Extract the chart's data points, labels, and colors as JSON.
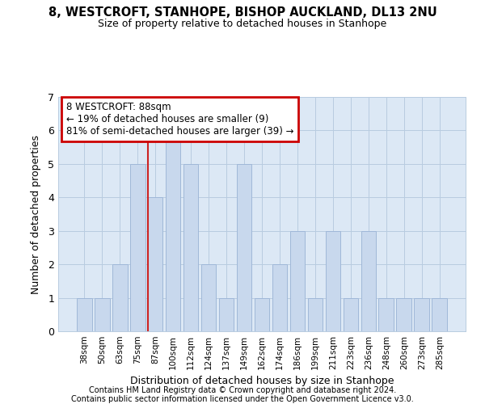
{
  "title1": "8, WESTCROFT, STANHOPE, BISHOP AUCKLAND, DL13 2NU",
  "title2": "Size of property relative to detached houses in Stanhope",
  "xlabel": "Distribution of detached houses by size in Stanhope",
  "ylabel": "Number of detached properties",
  "categories": [
    "38sqm",
    "50sqm",
    "63sqm",
    "75sqm",
    "87sqm",
    "100sqm",
    "112sqm",
    "124sqm",
    "137sqm",
    "149sqm",
    "162sqm",
    "174sqm",
    "186sqm",
    "199sqm",
    "211sqm",
    "223sqm",
    "236sqm",
    "248sqm",
    "260sqm",
    "273sqm",
    "285sqm"
  ],
  "values": [
    1,
    1,
    2,
    5,
    4,
    6,
    5,
    2,
    1,
    5,
    1,
    2,
    3,
    1,
    3,
    1,
    3,
    1,
    1,
    1,
    1
  ],
  "highlight_index": 4,
  "normal_bar_color": "#c8d8ed",
  "highlight_bar_color": "#c8d8ed",
  "normal_edge_color": "#a0b8d8",
  "highlight_left_edge_color": "#cc2222",
  "annotation_text": "8 WESTCROFT: 88sqm\n← 19% of detached houses are smaller (9)\n81% of semi-detached houses are larger (39) →",
  "annotation_box_color": "#ffffff",
  "annotation_box_edge_color": "#cc0000",
  "grid_color": "#b8cce0",
  "background_color": "#dce8f5",
  "fig_background": "#ffffff",
  "ylim": [
    0,
    7
  ],
  "yticks": [
    0,
    1,
    2,
    3,
    4,
    5,
    6,
    7
  ],
  "footer1": "Contains HM Land Registry data © Crown copyright and database right 2024.",
  "footer2": "Contains public sector information licensed under the Open Government Licence v3.0."
}
